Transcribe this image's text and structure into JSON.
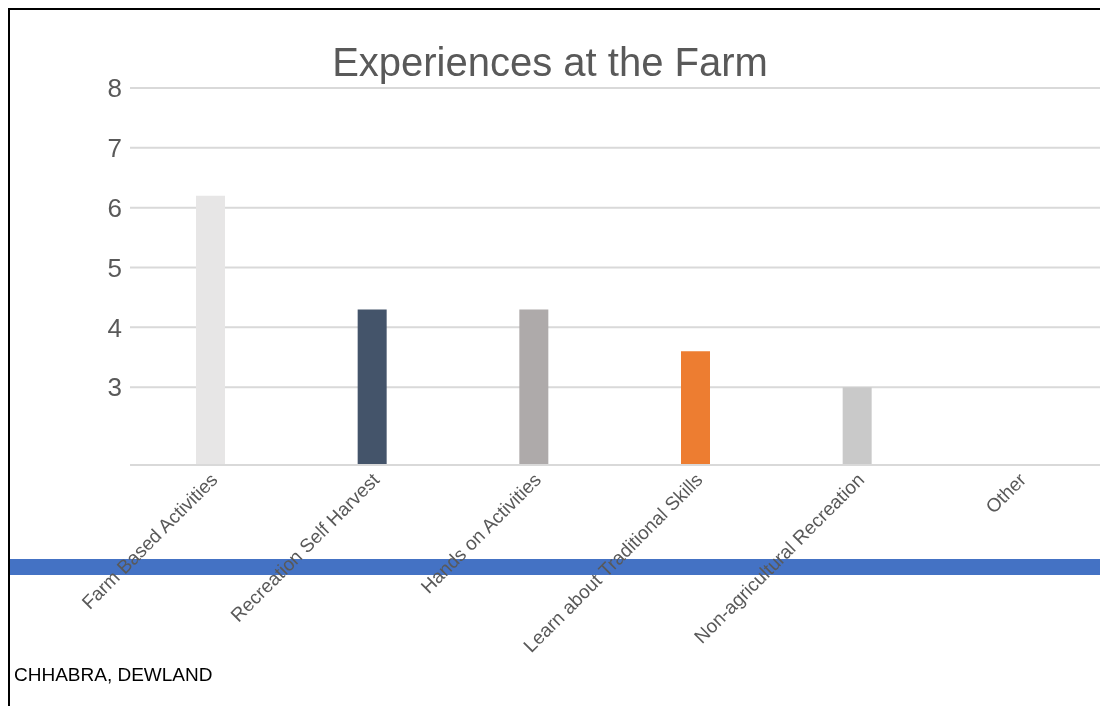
{
  "chart_data": {
    "type": "bar",
    "title": "Experiences at the Farm",
    "categories": [
      "Farm Based Activities",
      "Recreation Self Harvest",
      "Hands on Activities",
      "Learn about Traditional Skills",
      "Non-agricultural Recreation",
      "Other"
    ],
    "values": [
      6.2,
      4.3,
      4.3,
      3.6,
      3.0,
      null
    ],
    "colors": [
      "#e7e6e6",
      "#44546a",
      "#aeaaaa",
      "#ed7d31",
      "#c9c9c9",
      "#a5a5a5"
    ],
    "ylim": [
      1.7,
      8
    ],
    "yticks": [
      3,
      4,
      5,
      6,
      7,
      8
    ],
    "grid": "y",
    "annotations": [
      "CHHABRA, DEWLAND"
    ]
  }
}
